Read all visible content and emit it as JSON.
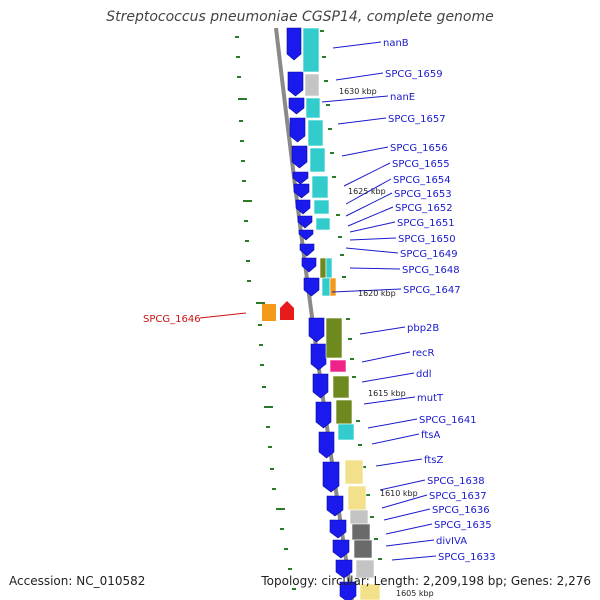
{
  "title": "Streptococcus pneumoniae CGSP14, complete genome",
  "footer": {
    "accession": "Accession: NC_010582",
    "topology": "Topology: circular; Length: 2,209,198 bp; Genes: 2,276"
  },
  "kbp_labels": [
    "1630 kbp",
    "1625 kbp",
    "1620 kbp",
    "1615 kbp",
    "1610 kbp",
    "1605 kbp"
  ],
  "genes_right": [
    "nanB",
    "SPCG_1659",
    "nanE",
    "SPCG_1657",
    "SPCG_1656",
    "SPCG_1655",
    "SPCG_1654",
    "SPCG_1653",
    "SPCG_1652",
    "SPCG_1651",
    "SPCG_1650",
    "SPCG_1649",
    "SPCG_1648",
    "SPCG_1647",
    "pbp2B",
    "recR",
    "ddl",
    "mutT",
    "SPCG_1641",
    "ftsA",
    "ftsZ",
    "SPCG_1638",
    "SPCG_1637",
    "SPCG_1636",
    "SPCG_1635",
    "divIVA",
    "SPCG_1633"
  ],
  "gene_left": "SPCG_1646",
  "colors": {
    "backbone": "#8a8a8a",
    "cds": "#1a1aee",
    "cyan": "#33cccc",
    "olive": "#6e8a1e",
    "magenta": "#ee2288",
    "yellow": "#f2e08a",
    "lightgray": "#c4c4c4",
    "darkgray": "#6a6a6a",
    "orange": "#f39a1a",
    "red": "#e81a1a",
    "label_blue": "#1a1acc",
    "label_red": "#cc1111",
    "tick_green": "#2a7a2a"
  }
}
